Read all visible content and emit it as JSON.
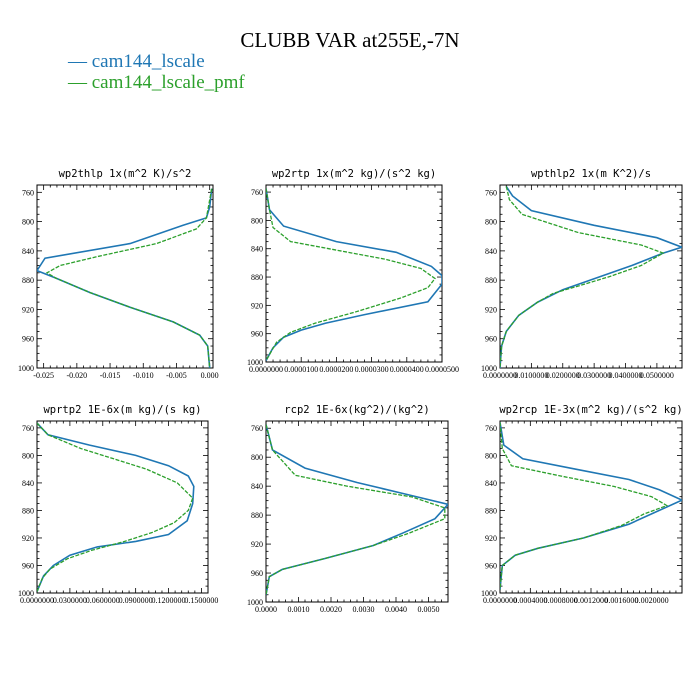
{
  "title": "CLUBB VAR at255E,-7N",
  "legend": [
    {
      "label": "— cam144_lscale",
      "color": "#1f77b4"
    },
    {
      "label": "— cam144_lscale_pmf",
      "color": "#2ca02c"
    }
  ],
  "chart_data": [
    {
      "type": "line",
      "title": "wp2thlp   1x(m^2 K)/s^2",
      "xlim": [
        -0.026,
        0.0005
      ],
      "ylim": [
        1000,
        750
      ],
      "xticks": [
        -0.025,
        -0.02,
        -0.015,
        -0.01,
        -0.005,
        0.0
      ],
      "xtick_labels": [
        "-0.025",
        "-0.020",
        "-0.015",
        "-0.010",
        "-0.005",
        "0.000"
      ],
      "yticks": [
        760,
        800,
        840,
        880,
        920,
        960,
        1000
      ],
      "ytick_labels": [
        "760",
        "800",
        "840",
        "880",
        "920",
        "960",
        "1000"
      ],
      "series": [
        {
          "name": "cam144_lscale",
          "color": "#1f77b4",
          "dashed": false,
          "x": [
            0.0003,
            0.0,
            -0.0005,
            -0.004,
            -0.012,
            -0.0248,
            -0.0255,
            -0.026,
            -0.0232,
            -0.018,
            -0.012,
            -0.0055,
            -0.0015,
            -0.0003,
            0.0
          ],
          "y": [
            755,
            780,
            795,
            805,
            830,
            850,
            860,
            867,
            877,
            897,
            917,
            937,
            955,
            970,
            1000
          ]
        },
        {
          "name": "cam144_lscale_pmf",
          "color": "#2ca02c",
          "dashed": true,
          "x": [
            0.0003,
            -0.0005,
            -0.002,
            -0.008,
            -0.017,
            -0.0225,
            -0.0245,
            -0.0232,
            -0.018,
            -0.012,
            -0.0055,
            -0.0015,
            -0.0003,
            0.0
          ],
          "y": [
            755,
            795,
            810,
            830,
            848,
            860,
            870,
            877,
            897,
            917,
            937,
            955,
            970,
            1000
          ]
        }
      ]
    },
    {
      "type": "line",
      "title": "wp2rtp   1x(m^2 kg)/(s^2 kg)",
      "xlim": [
        0.0,
        5e-05
      ],
      "ylim": [
        1000,
        750
      ],
      "xticks": [
        0.0,
        1e-05,
        2e-05,
        3e-05,
        4e-05,
        5e-05
      ],
      "xtick_labels": [
        "0.0000000",
        "0.0000100",
        "0.0000200",
        "0.0000300",
        "0.0000400",
        "0.0000500"
      ],
      "yticks": [
        760,
        800,
        840,
        880,
        920,
        960,
        1000
      ],
      "ytick_labels": [
        "760",
        "800",
        "840",
        "880",
        "920",
        "960",
        "1000"
      ],
      "series": [
        {
          "name": "cam144_lscale",
          "color": "#1f77b4",
          "dashed": false,
          "x": [
            0.0,
            1e-06,
            5e-06,
            2e-05,
            3.7e-05,
            4.7e-05,
            5e-05,
            5e-05,
            4.6e-05,
            2.8e-05,
            1.7e-05,
            1e-05,
            5e-06,
            2e-06,
            0.0
          ],
          "y": [
            755,
            785,
            808,
            830,
            845,
            865,
            878,
            890,
            915,
            933,
            945,
            955,
            965,
            980,
            998
          ]
        },
        {
          "name": "cam144_lscale_pmf",
          "color": "#2ca02c",
          "dashed": true,
          "x": [
            0.0,
            1e-06,
            2e-06,
            7e-06,
            2e-05,
            3.4e-05,
            4.4e-05,
            4.8e-05,
            4.6e-05,
            3.8e-05,
            2.5e-05,
            1.4e-05,
            7e-06,
            3e-06,
            0.0
          ],
          "y": [
            755,
            785,
            810,
            830,
            842,
            855,
            868,
            882,
            895,
            910,
            930,
            945,
            958,
            972,
            998
          ]
        }
      ]
    },
    {
      "type": "line",
      "title": "wpthlp2   1x(m K^2)/s",
      "xlim": [
        0.0,
        0.058
      ],
      "ylim": [
        1000,
        750
      ],
      "xticks": [
        0.0,
        0.01,
        0.02,
        0.03,
        0.04,
        0.05
      ],
      "xtick_labels": [
        "0.0000000",
        "0.0100000",
        "0.0200000",
        "0.0300000",
        "0.0400000",
        "0.0500000"
      ],
      "yticks": [
        760,
        800,
        840,
        880,
        920,
        960,
        1000
      ],
      "ytick_labels": [
        "760",
        "800",
        "840",
        "880",
        "920",
        "960",
        "1000"
      ],
      "series": [
        {
          "name": "cam144_lscale",
          "color": "#1f77b4",
          "dashed": false,
          "x": [
            0.002,
            0.004,
            0.01,
            0.03,
            0.05,
            0.058,
            0.052,
            0.042,
            0.03,
            0.02,
            0.012,
            0.006,
            0.002,
            0.0005,
            0.0
          ],
          "y": [
            752,
            765,
            785,
            805,
            822,
            835,
            843,
            860,
            878,
            893,
            910,
            928,
            950,
            970,
            1000
          ]
        },
        {
          "name": "cam144_lscale_pmf",
          "color": "#2ca02c",
          "dashed": true,
          "x": [
            0.002,
            0.003,
            0.007,
            0.025,
            0.045,
            0.052,
            0.045,
            0.035,
            0.025,
            0.017,
            0.012,
            0.006,
            0.002,
            0.0005,
            0.0
          ],
          "y": [
            752,
            770,
            790,
            815,
            832,
            843,
            860,
            875,
            888,
            898,
            910,
            928,
            950,
            970,
            1000
          ]
        }
      ]
    },
    {
      "type": "line",
      "title": "wprtp2   1E-6x(m kg)/(s kg)",
      "xlim": [
        0.0,
        0.156
      ],
      "ylim": [
        1000,
        750
      ],
      "xticks": [
        0.0,
        0.03,
        0.06,
        0.09,
        0.12,
        0.15
      ],
      "xtick_labels": [
        "0.0000000",
        "0.0300000",
        "0.0600000",
        "0.0900000",
        "0.1200000",
        "0.1500000"
      ],
      "yticks": [
        760,
        800,
        840,
        880,
        920,
        960,
        1000
      ],
      "ytick_labels": [
        "760",
        "800",
        "840",
        "880",
        "920",
        "960",
        "1000"
      ],
      "series": [
        {
          "name": "cam144_lscale",
          "color": "#1f77b4",
          "dashed": false,
          "x": [
            0.0,
            0.01,
            0.048,
            0.09,
            0.12,
            0.138,
            0.143,
            0.142,
            0.137,
            0.12,
            0.09,
            0.055,
            0.03,
            0.015,
            0.006,
            0.0
          ],
          "y": [
            753,
            770,
            785,
            800,
            815,
            830,
            845,
            870,
            895,
            915,
            925,
            933,
            945,
            960,
            975,
            998
          ]
        },
        {
          "name": "cam144_lscale_pmf",
          "color": "#2ca02c",
          "dashed": true,
          "x": [
            0.0,
            0.01,
            0.04,
            0.07,
            0.1,
            0.128,
            0.142,
            0.138,
            0.125,
            0.105,
            0.08,
            0.05,
            0.028,
            0.012,
            0.005,
            0.0
          ],
          "y": [
            753,
            770,
            790,
            805,
            820,
            840,
            862,
            880,
            898,
            912,
            925,
            938,
            950,
            965,
            978,
            998
          ]
        }
      ]
    },
    {
      "type": "line",
      "title": "rcp2   1E-6x(kg^2)/(kg^2)",
      "xlim": [
        0.0,
        0.0056
      ],
      "ylim": [
        1000,
        750
      ],
      "xticks": [
        0.0,
        0.001,
        0.002,
        0.003,
        0.004,
        0.005
      ],
      "xtick_labels": [
        "0.0000",
        "0.0010",
        "0.0020",
        "0.0030",
        "0.0040",
        "0.0050"
      ],
      "yticks": [
        760,
        800,
        840,
        880,
        920,
        960,
        1000
      ],
      "ytick_labels": [
        "760",
        "800",
        "840",
        "880",
        "920",
        "960",
        "1000"
      ],
      "series": [
        {
          "name": "cam144_lscale",
          "color": "#1f77b4",
          "dashed": false,
          "x": [
            0.0,
            0.0002,
            0.0012,
            0.0028,
            0.0042,
            0.0056,
            0.0052,
            0.0042,
            0.0033,
            0.0018,
            0.0005,
            0.0001,
            0.0
          ],
          "y": [
            755,
            790,
            815,
            835,
            850,
            865,
            885,
            905,
            922,
            940,
            955,
            965,
            990
          ]
        },
        {
          "name": "cam144_lscale_pmf",
          "color": "#2ca02c",
          "dashed": true,
          "x": [
            0.0,
            0.0002,
            0.0009,
            0.0025,
            0.0045,
            0.0055,
            0.0055,
            0.0044,
            0.0033,
            0.0018,
            0.0005,
            0.0001,
            0.0
          ],
          "y": [
            755,
            790,
            825,
            840,
            855,
            870,
            885,
            905,
            922,
            940,
            955,
            965,
            990
          ]
        }
      ]
    },
    {
      "type": "line",
      "title": "wp2rcp   1E-3x(m^2 kg)/(s^2 kg)",
      "xlim": [
        0.0,
        0.0024
      ],
      "ylim": [
        1000,
        750
      ],
      "xticks": [
        0.0,
        0.0004,
        0.0008,
        0.0012,
        0.0016,
        0.002
      ],
      "xtick_labels": [
        "0.0000000",
        "0.0004000",
        "0.0008000",
        "0.0012000",
        "0.0016000",
        "0.0020000"
      ],
      "yticks": [
        760,
        800,
        840,
        880,
        920,
        960,
        1000
      ],
      "ytick_labels": [
        "760",
        "800",
        "840",
        "880",
        "920",
        "960",
        "1000"
      ],
      "series": [
        {
          "name": "cam144_lscale",
          "color": "#1f77b4",
          "dashed": false,
          "x": [
            0.0,
            5e-05,
            0.0003,
            0.001,
            0.0017,
            0.0021,
            0.0024,
            0.0021,
            0.0017,
            0.0011,
            0.0005,
            0.0002,
            3e-05,
            0.0
          ],
          "y": [
            752,
            785,
            805,
            820,
            835,
            850,
            865,
            880,
            900,
            920,
            935,
            945,
            960,
            995
          ]
        },
        {
          "name": "cam144_lscale_pmf",
          "color": "#2ca02c",
          "dashed": true,
          "x": [
            0.0,
            3e-05,
            0.00015,
            0.0008,
            0.0015,
            0.002,
            0.0022,
            0.0019,
            0.0016,
            0.0011,
            0.0005,
            0.0002,
            3e-05,
            0.0
          ],
          "y": [
            752,
            790,
            815,
            830,
            845,
            860,
            873,
            885,
            902,
            920,
            935,
            945,
            960,
            995
          ]
        }
      ]
    }
  ]
}
